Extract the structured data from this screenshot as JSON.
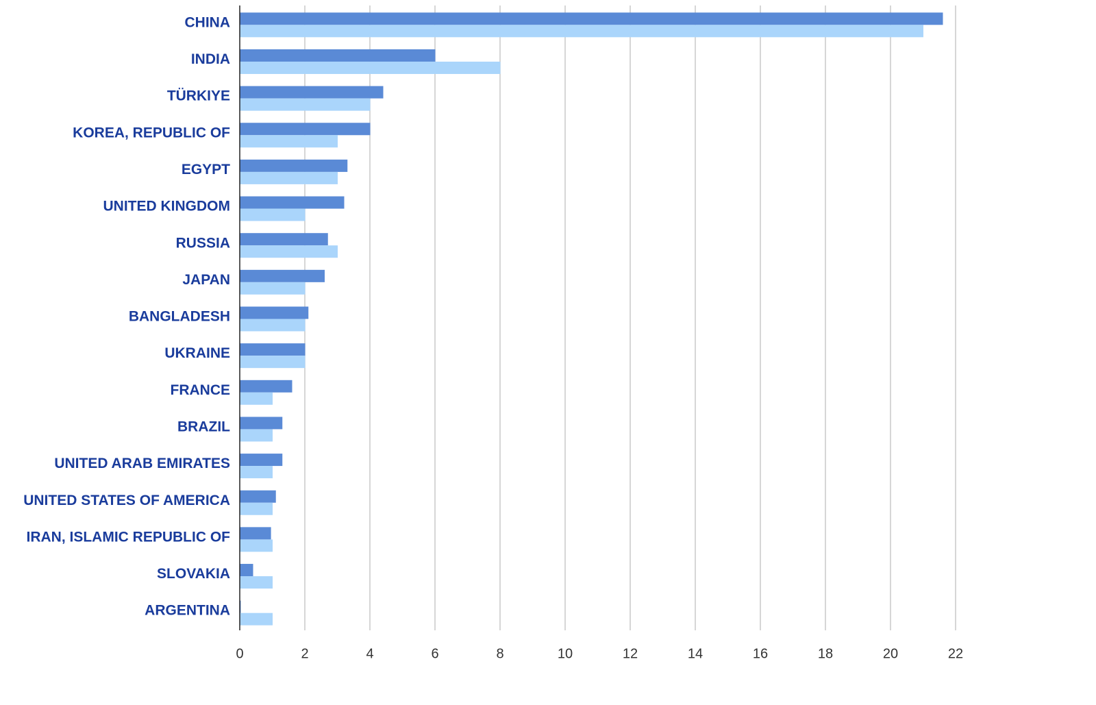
{
  "chart_data": {
    "type": "hbar",
    "categories": [
      "CHINA",
      "INDIA",
      "TÜRKIYE",
      "KOREA, REPUBLIC OF",
      "EGYPT",
      "UNITED KINGDOM",
      "RUSSIA",
      "JAPAN",
      "BANGLADESH",
      "UKRAINE",
      "FRANCE",
      "BRAZIL",
      "UNITED ARAB EMIRATES",
      "UNITED STATES OF AMERICA",
      "IRAN, ISLAMIC REPUBLIC OF",
      "SLOVAKIA",
      "ARGENTINA"
    ],
    "series": [
      {
        "color": "#5a8ad6",
        "values": [
          21.6,
          6.0,
          4.4,
          4.0,
          3.3,
          3.2,
          2.7,
          2.6,
          2.1,
          2.0,
          1.6,
          1.3,
          1.3,
          1.1,
          0.95,
          0.4,
          0.02
        ]
      },
      {
        "color": "#aad5fb",
        "values": [
          21,
          8,
          4,
          3,
          3,
          2,
          3,
          2,
          2,
          2,
          1,
          1,
          1,
          1,
          1,
          1,
          1
        ]
      }
    ],
    "xlim": [
      0,
      22
    ],
    "xticks": [
      0,
      2,
      4,
      6,
      8,
      10,
      12,
      14,
      16,
      18,
      20,
      22
    ],
    "grid": true
  }
}
